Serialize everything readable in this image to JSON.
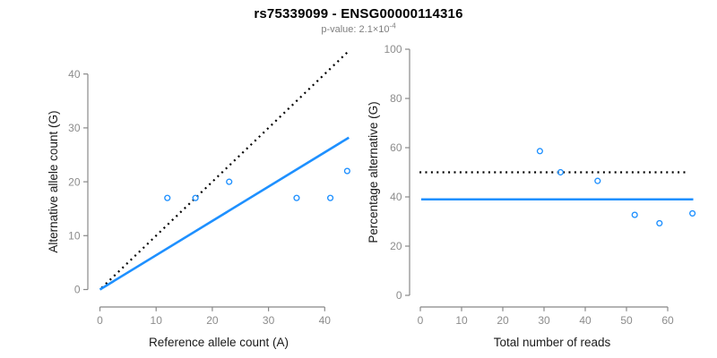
{
  "header": {
    "title": "rs75339099 - ENSG00000114316",
    "subtitle": {
      "prefix": "p-value: ",
      "mantissa": "2.1",
      "times": "×",
      "base": "10",
      "exponent": "-4"
    }
  },
  "colors": {
    "accent_blue": "#1E90FF",
    "dotted_black": "#000000",
    "axis_line": "#888888",
    "tick_label": "#8c8c8c",
    "axis_title": "#1a1a1a",
    "subtitle_gray": "#7f7f7f",
    "background": "#ffffff"
  },
  "chart_data": {
    "figure_title": "rs75339099 - ENSG00000114316",
    "figure_subtitle": "p-value: 2.1×10^-4",
    "panels": [
      {
        "name": "allele-counts-panel",
        "type": "scatter",
        "xlabel": "Reference allele count (A)",
        "ylabel": "Alternative allele count (G)",
        "x_ticks": [
          0,
          10,
          20,
          30,
          40
        ],
        "y_ticks": [
          0,
          10,
          20,
          30,
          40
        ],
        "xlim": [
          -2.2,
          44.6
        ],
        "ylim": [
          -3.3,
          44.5
        ],
        "grid": false,
        "points": [
          [
            12,
            17
          ],
          [
            17,
            17
          ],
          [
            23,
            20
          ],
          [
            35,
            17
          ],
          [
            41,
            17
          ],
          [
            44,
            22
          ]
        ],
        "lines": [
          {
            "name": "expected-identity-line",
            "style": "dotted",
            "color": "#000000",
            "x1": 0.3,
            "y1": 0.3,
            "x2": 44.0,
            "y2": 44.0
          },
          {
            "name": "fitted-ratio-line",
            "style": "solid",
            "color": "#1E90FF",
            "x1": 0.0,
            "y1": 0.0,
            "x2": 44.3,
            "y2": 28.2
          }
        ]
      },
      {
        "name": "percentage-panel",
        "type": "scatter",
        "xlabel": "Total number of reads",
        "ylabel": "Percentage alternative (G)",
        "x_ticks": [
          0,
          10,
          20,
          30,
          40,
          50,
          60
        ],
        "y_ticks": [
          0,
          20,
          40,
          60,
          80,
          100
        ],
        "xlim": [
          -2.6,
          67.0
        ],
        "ylim": [
          -4.7,
          104.5
        ],
        "grid": false,
        "points": [
          [
            29,
            58.6
          ],
          [
            34,
            50.0
          ],
          [
            43,
            46.5
          ],
          [
            52,
            32.7
          ],
          [
            58,
            29.3
          ],
          [
            66,
            33.3
          ]
        ],
        "lines": [
          {
            "name": "expected-50pct-line",
            "style": "dotted",
            "color": "#000000",
            "x1": -0.2,
            "y1": 50,
            "x2": 64.8,
            "y2": 50
          },
          {
            "name": "mean-percentage-line",
            "style": "solid",
            "color": "#1E90FF",
            "x1": 0.2,
            "y1": 39,
            "x2": 66.2,
            "y2": 39
          }
        ]
      }
    ]
  }
}
